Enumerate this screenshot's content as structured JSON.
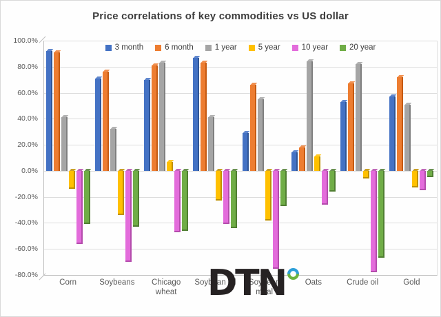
{
  "title": "Price correlations of key commodities vs US dollar",
  "logo": {
    "text": "DTN"
  },
  "chart_data": {
    "type": "bar",
    "title": "Price correlations of key commodities vs US dollar",
    "unit": "%",
    "categories": [
      "Corn",
      "Soybeans",
      "Chicago wheat",
      "Soybean oil",
      "Soybean meal",
      "Oats",
      "Crude oil",
      "Gold"
    ],
    "series": [
      {
        "name": "3 month",
        "color": "#4472C4",
        "side_color": "#2F5597",
        "values": [
          92,
          71,
          70,
          87,
          29,
          14,
          53,
          57
        ]
      },
      {
        "name": "6 month",
        "color": "#ED7D31",
        "side_color": "#C55A11",
        "values": [
          91,
          76,
          81,
          83,
          66,
          18,
          67,
          72
        ]
      },
      {
        "name": "1 year",
        "color": "#A5A5A5",
        "side_color": "#7F7F7F",
        "values": [
          41,
          32,
          83,
          41,
          55,
          84,
          82,
          51
        ]
      },
      {
        "name": "5 year",
        "color": "#FFC000",
        "side_color": "#BF9000",
        "values": [
          -14,
          -34,
          7,
          -23,
          -38,
          11,
          -6,
          -13
        ]
      },
      {
        "name": "10 year",
        "color": "#E36CDB",
        "side_color": "#B44CAC",
        "values": [
          -56,
          -70,
          -47,
          -41,
          -75,
          -26,
          -78,
          -15
        ]
      },
      {
        "name": "20 year",
        "color": "#70AD47",
        "side_color": "#507E32",
        "values": [
          -41,
          -43,
          -46,
          -44,
          -27,
          -16,
          -67,
          -5
        ]
      }
    ],
    "ylim": [
      -80,
      100
    ],
    "ytick_step": 20,
    "yticks": [
      "100.0%",
      "80.0%",
      "60.0%",
      "40.0%",
      "20.0%",
      "0.0%",
      "-20.0%",
      "-40.0%",
      "-60.0%",
      "-80.0%"
    ],
    "grid": true,
    "legend_position": "top-center"
  }
}
